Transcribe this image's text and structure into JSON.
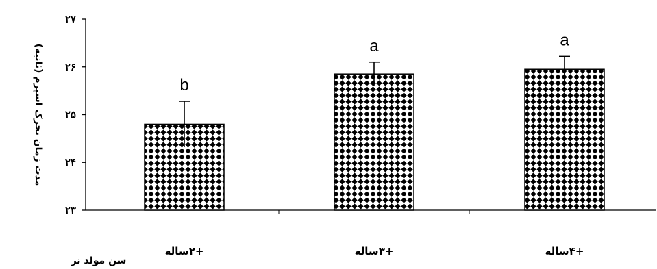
{
  "chart_data": {
    "type": "bar",
    "categories": [
      "+۲ساله",
      "+۳ساله",
      "+۴ساله"
    ],
    "values": [
      24.8,
      25.85,
      25.95
    ],
    "errors": [
      0.48,
      0.25,
      0.27
    ],
    "significance": [
      "b",
      "a",
      "a"
    ],
    "yticks": [
      {
        "value": 23,
        "label": "۲۳"
      },
      {
        "value": 24,
        "label": "۲۴"
      },
      {
        "value": 25,
        "label": "۲۵"
      },
      {
        "value": 26,
        "label": "۲۶"
      },
      {
        "value": 27,
        "label": "۲۷"
      }
    ],
    "ylim": [
      23,
      27
    ],
    "ylabel": "مدت زمان تحرک اسپرم (ثانیه)",
    "xlabel": "سن مولد نر",
    "title": "",
    "grid": false,
    "bar_pattern": "checkered",
    "bar_color": "#000000"
  }
}
